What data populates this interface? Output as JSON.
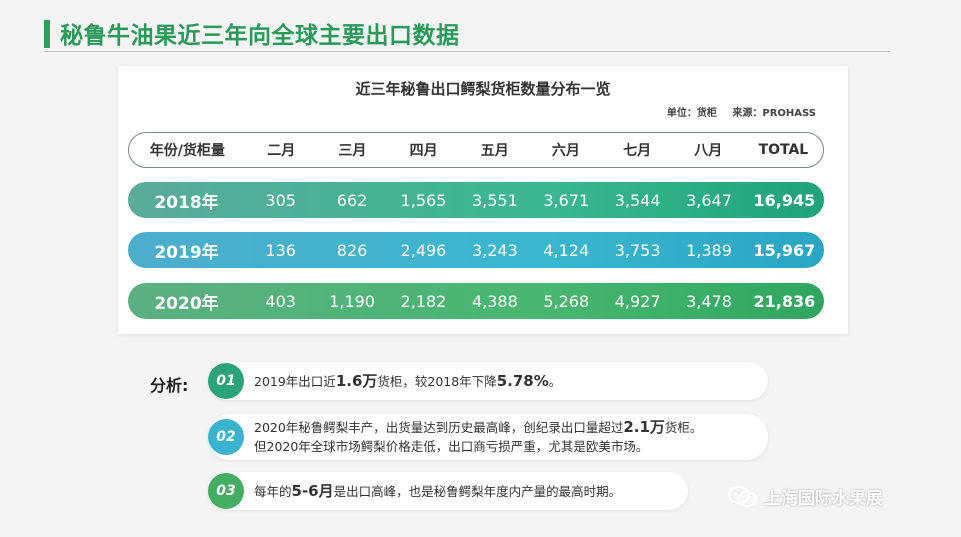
{
  "header": {
    "title": "秘鲁牛油果近三年向全球主要出口数据"
  },
  "table": {
    "title": "近三年秘鲁出口鳄梨货柜数量分布一览",
    "unit": "单位：货柜",
    "source": "来源：PROHASS",
    "columns": [
      "年份/货柜量",
      "二月",
      "三月",
      "四月",
      "五月",
      "六月",
      "七月",
      "八月",
      "TOTAL"
    ],
    "rows": [
      {
        "year": "2018年",
        "values": [
          "305",
          "662",
          "1,565",
          "3,551",
          "3,671",
          "3,544",
          "3,647"
        ],
        "total": "16,945"
      },
      {
        "year": "2019年",
        "values": [
          "136",
          "826",
          "2,496",
          "3,243",
          "4,124",
          "3,753",
          "1,389"
        ],
        "total": "15,967"
      },
      {
        "year": "2020年",
        "values": [
          "403",
          "1,190",
          "2,182",
          "4,388",
          "5,268",
          "4,927",
          "3,478"
        ],
        "total": "21,836"
      }
    ]
  },
  "analysis": {
    "label": "分析:",
    "items": [
      {
        "num": "01",
        "p1": "2019年出口近",
        "b1": "1.6万",
        "p2": "货柜，较2018年下降",
        "b2": "5.78%",
        "p3": "。"
      },
      {
        "num": "02",
        "p1": "2020年秘鲁鳄梨丰产，出货量达到历史最高峰，创纪录出口量超过",
        "b1": "2.1万",
        "p2": "货柜。",
        "line2": "但2020年全球市场鳄梨价格走低，出口商亏损严重，尤其是欧美市场。"
      },
      {
        "num": "03",
        "p1": "每年的",
        "b1": "5-6月",
        "p2": "是出口高峰，也是秘鲁鳄梨年度内产量的最高时期。"
      }
    ]
  },
  "watermark": {
    "text": "上海国际水果展",
    "icon": "wechat-icon"
  },
  "colors": {
    "brand_green": "#2a9a5a",
    "row_2018": "#3ab88f",
    "row_2019": "#3ab6cf",
    "row_2020": "#48b770"
  }
}
